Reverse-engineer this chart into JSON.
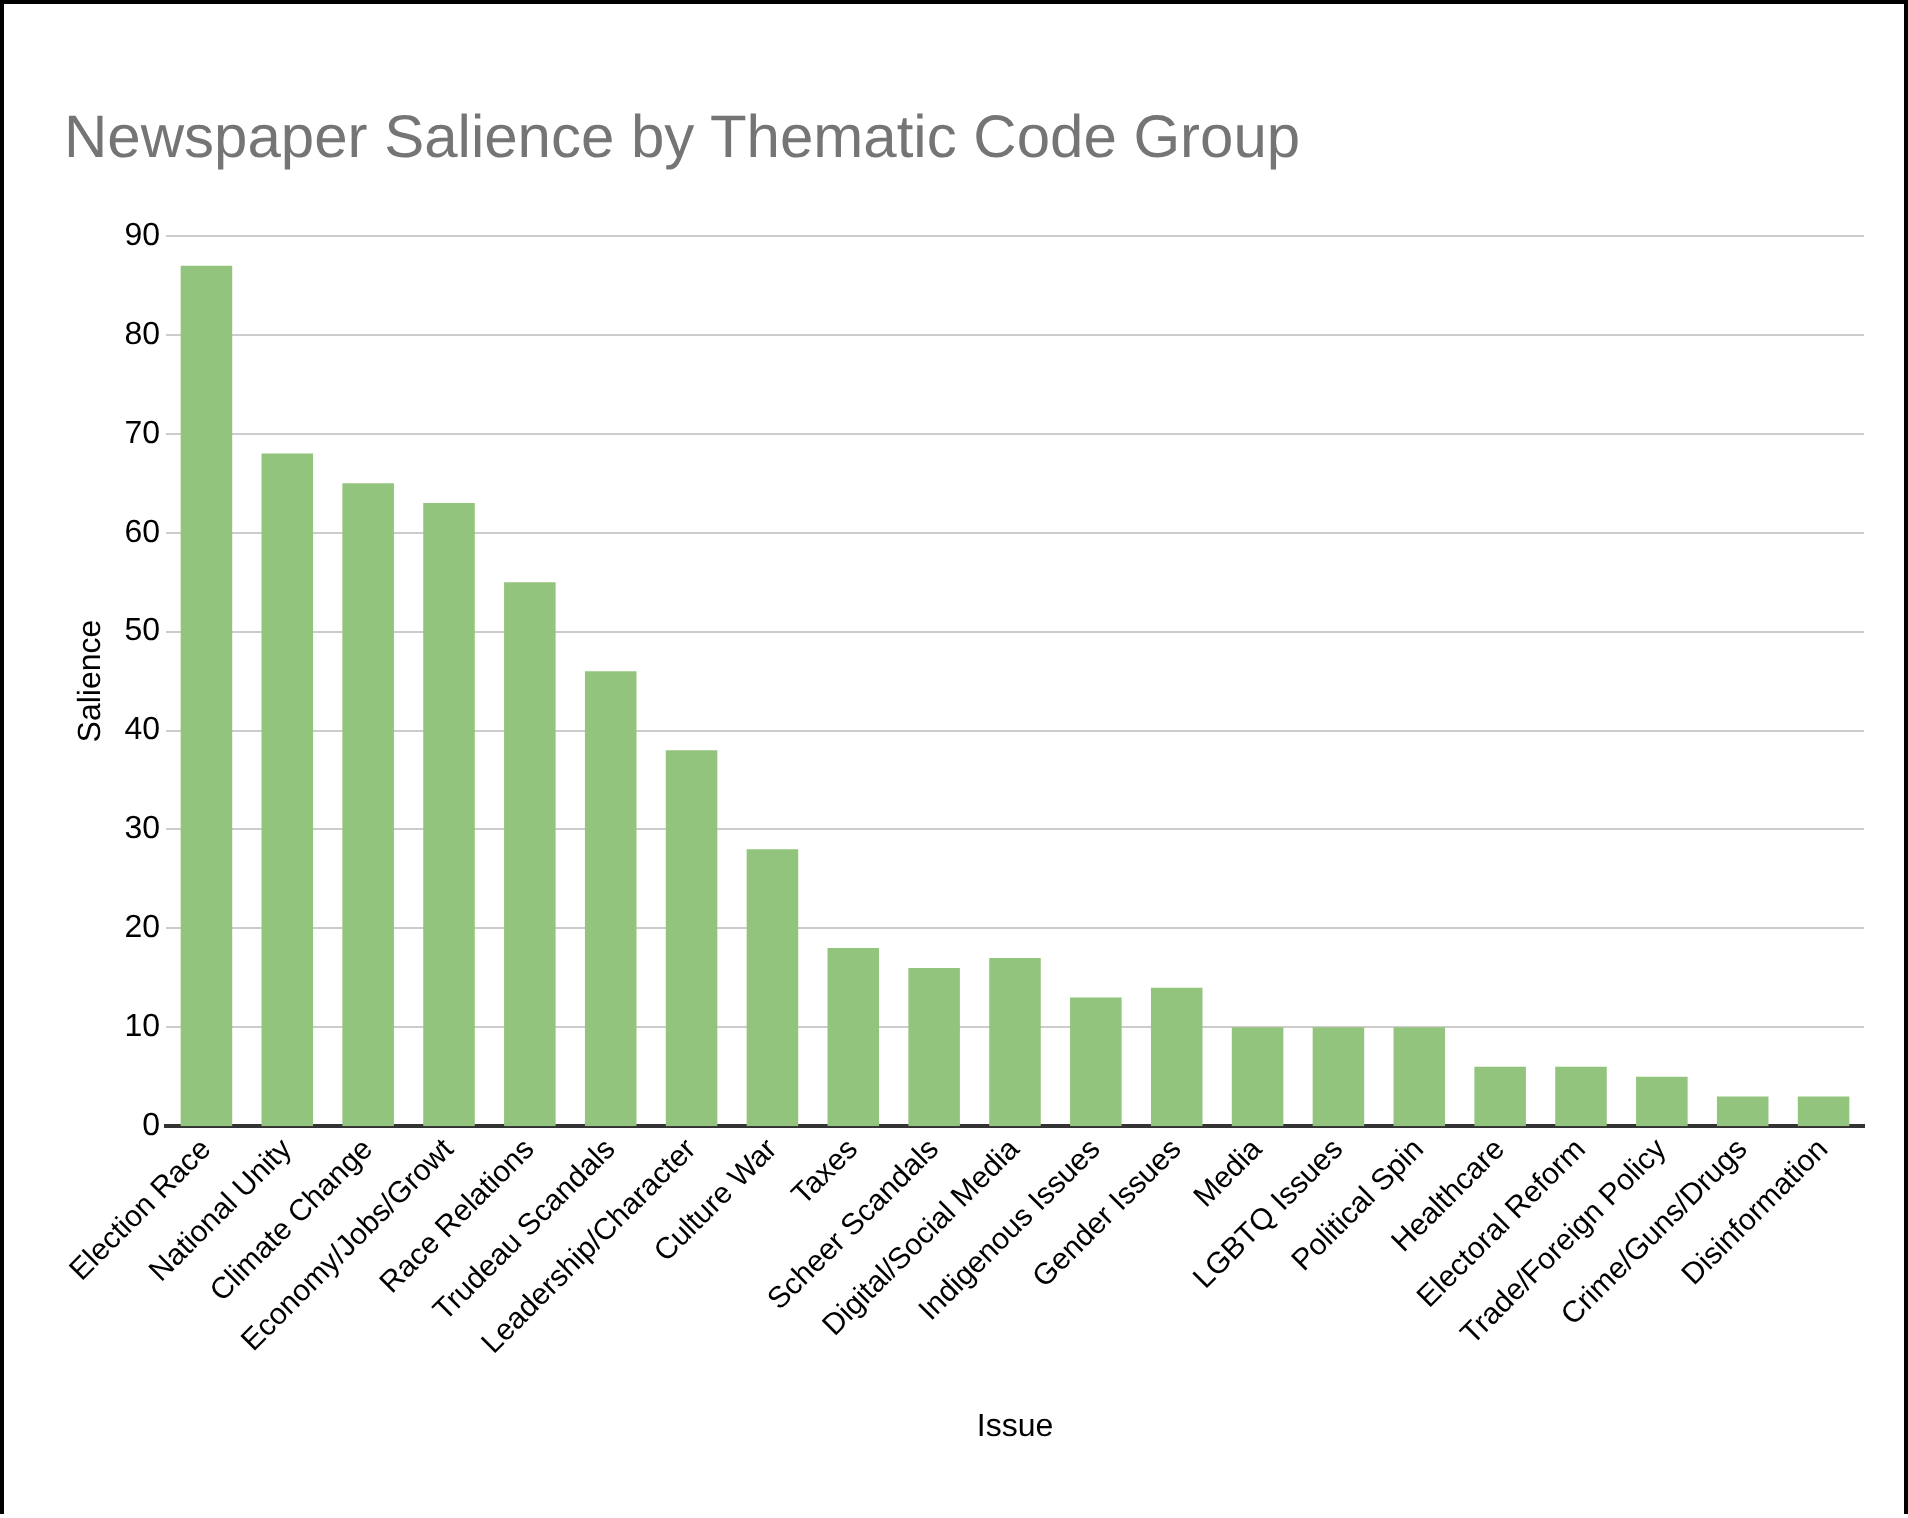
{
  "chart_data": {
    "type": "bar",
    "title": "Newspaper Salience by Thematic Code Group",
    "xlabel": "Issue",
    "ylabel": "Salience",
    "categories": [
      "Election Race",
      "National Unity",
      "Climate Change",
      "Economy/Jobs/Growt",
      "Race Relations",
      "Trudeau Scandals",
      "Leadership/Character",
      "Culture War",
      "Taxes",
      "Scheer Scandals",
      "Digital/Social Media",
      "Indigenous Issues",
      "Gender Issues",
      "Media",
      "LGBTQ Issues",
      "Political Spin",
      "Healthcare",
      "Electoral Reform",
      "Trade/Foreign Policy",
      "Crime/Guns/Drugs",
      "Disinformation"
    ],
    "values": [
      87,
      68,
      65,
      63,
      55,
      46,
      38,
      28,
      18,
      16,
      17,
      13,
      14,
      10,
      10,
      10,
      6,
      6,
      5,
      3,
      3
    ],
    "color": "#93c47d",
    "ylim": [
      0,
      90
    ],
    "yticks": [
      0,
      10,
      20,
      30,
      40,
      50,
      60,
      70,
      80,
      90
    ],
    "grid": "y"
  }
}
